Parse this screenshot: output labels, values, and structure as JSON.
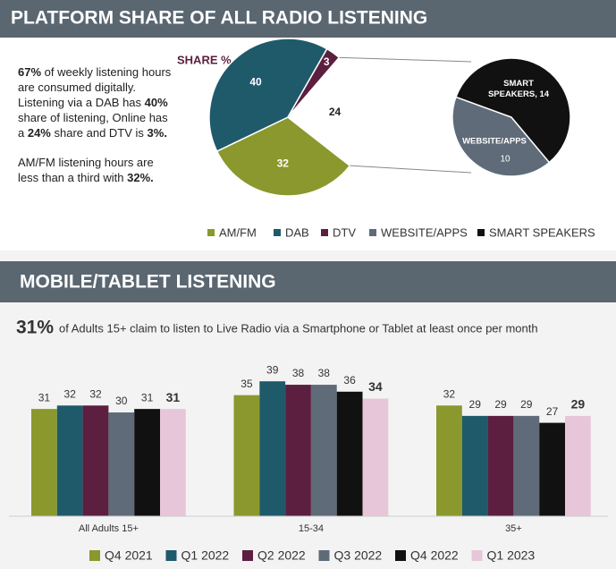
{
  "header": {
    "title": "PLATFORM SHARE OF ALL RADIO LISTENING"
  },
  "summary": [
    [
      {
        "text": "67%",
        "bold": true
      },
      {
        "text": " of weekly listening hours are consumed digitally. Listening via a DAB has ",
        "bold": false
      },
      {
        "text": "40%",
        "bold": true
      },
      {
        "text": " share of listening,  Online has a ",
        "bold": false
      },
      {
        "text": "24%",
        "bold": true
      },
      {
        "text": " share and DTV is ",
        "bold": false
      },
      {
        "text": "3%.",
        "bold": true
      }
    ],
    [
      {
        "text": "AM/FM listening hours are less than a third with ",
        "bold": false
      },
      {
        "text": "32%.",
        "bold": true
      }
    ]
  ],
  "section2": {
    "title": "MOBILE/TABLET LISTENING",
    "headline_value": "31%",
    "headline_text": "of Adults 15+ claim to listen to Live Radio via a Smartphone or Tablet at least once per month"
  },
  "chart_data": [
    {
      "type": "pie",
      "title": "SHARE %",
      "categories": [
        "AM/FM",
        "DAB",
        "DTV",
        null
      ],
      "values": [
        32,
        40,
        3,
        24
      ],
      "colors": [
        "#8a982d",
        "#1f5a6b",
        "#5c1f40",
        "#ffffff"
      ],
      "secondary": {
        "categories": [
          "WEBSITE/APPS",
          "SMART SPEAKERS"
        ],
        "values": [
          10,
          14
        ],
        "value_labels": [
          "10",
          "SMART SPEAKERS, 14"
        ],
        "colors": [
          "#5f6b78",
          "#111111"
        ]
      }
    },
    {
      "type": "bar",
      "categories": [
        "All Adults 15+",
        "15-34",
        "35+"
      ],
      "series": [
        {
          "name": "Q4 2021",
          "color": "#8a982d",
          "values": [
            31,
            35,
            32
          ]
        },
        {
          "name": "Q1 2022",
          "color": "#1f5a6b",
          "values": [
            32,
            39,
            29
          ]
        },
        {
          "name": "Q2 2022",
          "color": "#5c1f40",
          "values": [
            32,
            38,
            29
          ]
        },
        {
          "name": "Q3 2022",
          "color": "#5f6b78",
          "values": [
            30,
            38,
            29
          ]
        },
        {
          "name": "Q4 2022",
          "color": "#111111",
          "values": [
            31,
            36,
            27
          ]
        },
        {
          "name": "Q1 2023",
          "color": "#e8c6da",
          "values": [
            31,
            34,
            29
          ]
        }
      ],
      "ylim": [
        0,
        45
      ]
    }
  ]
}
